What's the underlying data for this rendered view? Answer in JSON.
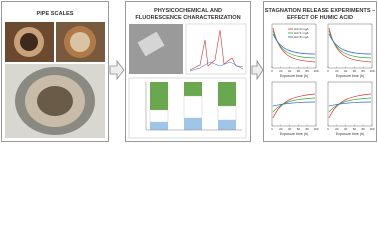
{
  "panels": [
    {
      "title": [
        "PIPE SCALES"
      ]
    },
    {
      "title": [
        "PHYSICOCHEMICAL AND",
        "FLUORESCENCE CHARACTERIZATION"
      ]
    },
    {
      "title": [
        "STAGNATION RELEASE EXPERIMENTS –",
        "EFFECT OF HUMIC ACID"
      ]
    }
  ],
  "plots": {
    "x_label": "Exposure time (h)",
    "x_ticks": [
      0,
      20,
      40,
      60,
      80,
      100
    ],
    "legend": [
      "HA=0 mg/L",
      "HA=1 mg/L",
      "HA=5 mg/L"
    ]
  }
}
